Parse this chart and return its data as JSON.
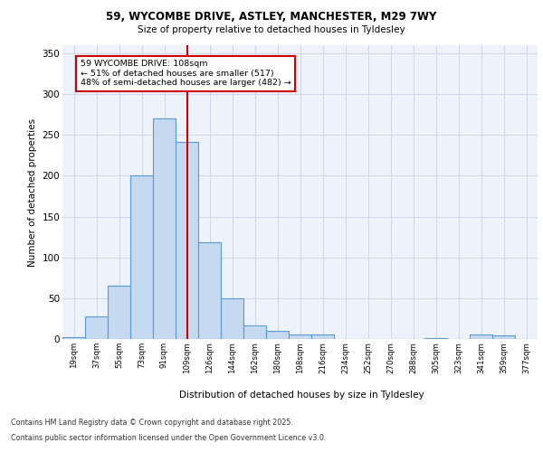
{
  "title_line1": "59, WYCOMBE DRIVE, ASTLEY, MANCHESTER, M29 7WY",
  "title_line2": "Size of property relative to detached houses in Tyldesley",
  "xlabel": "Distribution of detached houses by size in Tyldesley",
  "ylabel": "Number of detached properties",
  "categories": [
    "19sqm",
    "37sqm",
    "55sqm",
    "73sqm",
    "91sqm",
    "109sqm",
    "126sqm",
    "144sqm",
    "162sqm",
    "180sqm",
    "198sqm",
    "216sqm",
    "234sqm",
    "252sqm",
    "270sqm",
    "288sqm",
    "305sqm",
    "323sqm",
    "341sqm",
    "359sqm",
    "377sqm"
  ],
  "values": [
    2,
    28,
    65,
    200,
    270,
    241,
    119,
    50,
    17,
    10,
    5,
    6,
    0,
    0,
    0,
    0,
    1,
    0,
    5,
    4,
    0
  ],
  "bar_color": "#c5d9f0",
  "bar_edge_color": "#5b9bd5",
  "bar_edge_width": 0.8,
  "grid_color": "#d0d8e8",
  "background_color": "#eef2fa",
  "red_line_x": 5,
  "annotation_title": "59 WYCOMBE DRIVE: 108sqm",
  "annotation_line1": "← 51% of detached houses are smaller (517)",
  "annotation_line2": "48% of semi-detached houses are larger (482) →",
  "annotation_box_color": "#ffffff",
  "annotation_border_color": "#cc0000",
  "footer_line1": "Contains HM Land Registry data © Crown copyright and database right 2025.",
  "footer_line2": "Contains public sector information licensed under the Open Government Licence v3.0.",
  "ylim": [
    0,
    360
  ],
  "yticks": [
    0,
    50,
    100,
    150,
    200,
    250,
    300,
    350
  ]
}
